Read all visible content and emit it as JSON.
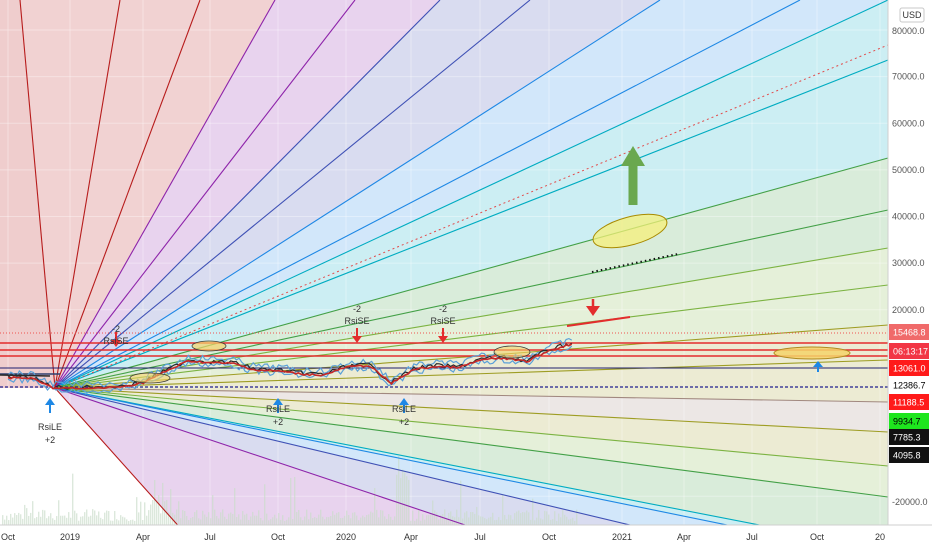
{
  "currency": "USD",
  "chart_data": {
    "type": "line",
    "x_ticks": [
      "Oct",
      "2019",
      "Apr",
      "Jul",
      "Oct",
      "2020",
      "Apr",
      "Jul",
      "Oct",
      "2021",
      "Apr",
      "Jul",
      "Oct",
      "20"
    ],
    "y_ticks": [
      "80000.0",
      "70000.0",
      "60000.0",
      "50000.0",
      "40000.0",
      "30000.0",
      "20000.0",
      "-20000.0"
    ],
    "price_series": [
      {
        "x": "2018-10",
        "y": 6500
      },
      {
        "x": "2018-11",
        "y": 6400
      },
      {
        "x": "2018-12",
        "y": 3800
      },
      {
        "x": "2019-01",
        "y": 3600
      },
      {
        "x": "2019-03",
        "y": 4000
      },
      {
        "x": "2019-04",
        "y": 5200
      },
      {
        "x": "2019-05",
        "y": 8200
      },
      {
        "x": "2019-06",
        "y": 11000
      },
      {
        "x": "2019-07",
        "y": 10500
      },
      {
        "x": "2019-08",
        "y": 10300
      },
      {
        "x": "2019-09",
        "y": 8500
      },
      {
        "x": "2019-10",
        "y": 8300
      },
      {
        "x": "2019-11",
        "y": 7500
      },
      {
        "x": "2019-12",
        "y": 7200
      },
      {
        "x": "2020-01",
        "y": 9300
      },
      {
        "x": "2020-02",
        "y": 9800
      },
      {
        "x": "2020-03",
        "y": 5000
      },
      {
        "x": "2020-04",
        "y": 8700
      },
      {
        "x": "2020-05",
        "y": 9500
      },
      {
        "x": "2020-06",
        "y": 9200
      },
      {
        "x": "2020-07",
        "y": 11300
      },
      {
        "x": "2020-08",
        "y": 11700
      },
      {
        "x": "2020-09",
        "y": 10800
      },
      {
        "x": "2020-10",
        "y": 13800
      },
      {
        "x": "2020-11",
        "y": 15468.8
      }
    ],
    "price_labels": [
      {
        "text": "15468.8",
        "color": "#f06a6a",
        "text_color": "#ffffff"
      },
      {
        "text": "06:13:17",
        "color": "#f23645",
        "text_color": "#ffffff"
      },
      {
        "text": "13061.0",
        "color": "#ff1a1a",
        "text_color": "#ffffff"
      },
      {
        "text": "12386.7",
        "color": "#ffffff",
        "text_color": "#000000"
      },
      {
        "text": "11188.5",
        "color": "#ff1a1a",
        "text_color": "#ffffff"
      },
      {
        "text": "9934.7",
        "color": "#1ee61e",
        "text_color": "#000000"
      },
      {
        "text": "7785.3",
        "color": "#111111",
        "text_color": "#ffffff"
      },
      {
        "text": "4095.8",
        "color": "#111111",
        "text_color": "#ffffff"
      }
    ],
    "signals": [
      {
        "name": "RsiLE",
        "count": "+2",
        "direction": "up",
        "date": "2018-12"
      },
      {
        "name": "RsiSE",
        "count": "-2",
        "direction": "down",
        "date": "2019-03"
      },
      {
        "name": "RsiLE",
        "count": "+2",
        "direction": "up",
        "date": "2019-10"
      },
      {
        "name": "RsiSE",
        "count": "-2",
        "direction": "down",
        "date": "2020-01"
      },
      {
        "name": "RsiLE",
        "count": "+2",
        "direction": "up",
        "date": "2020-03"
      },
      {
        "name": "RsiSE",
        "count": "-2",
        "direction": "down",
        "date": "2020-05"
      }
    ],
    "horizontal_levels": [
      15468.8,
      14300,
      13061.0,
      12386.7,
      11188.5
    ],
    "fan_colors": [
      "#b71c1c",
      "#8e24aa",
      "#3f51b5",
      "#1e88e5",
      "#00acc1",
      "#43a047",
      "#7cb342",
      "#9e9d24",
      "#a1887f"
    ],
    "grid": true
  }
}
